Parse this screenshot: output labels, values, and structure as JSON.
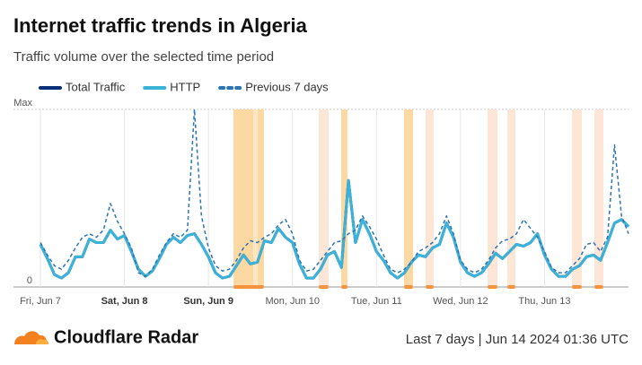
{
  "chart_data": {
    "type": "line",
    "title": "Internet traffic trends in Algeria",
    "subtitle": "Traffic volume over the selected time period",
    "categories": [
      "Fri, Jun 7",
      null,
      null,
      null,
      null,
      null,
      null,
      null,
      null,
      null,
      null,
      null,
      "Sat, Jun 8",
      null,
      null,
      null,
      null,
      null,
      null,
      null,
      null,
      null,
      null,
      null,
      "Sun, Jun 9",
      null,
      null,
      null,
      null,
      null,
      null,
      null,
      null,
      null,
      null,
      null,
      "Mon, Jun 10",
      null,
      null,
      null,
      null,
      null,
      null,
      null,
      null,
      null,
      null,
      null,
      "Tue, Jun 11",
      null,
      null,
      null,
      null,
      null,
      null,
      null,
      null,
      null,
      null,
      null,
      "Wed, Jun 12",
      null,
      null,
      null,
      null,
      null,
      null,
      null,
      null,
      null,
      null,
      null,
      "Thu, Jun 13",
      null,
      null,
      null,
      null,
      null,
      null,
      null,
      null,
      null,
      null,
      null,
      null
    ],
    "series": [
      {
        "name": "Total Traffic",
        "color": "#0a2f7a",
        "dashed": false,
        "values": [
          24,
          16,
          7,
          5,
          8,
          17,
          17,
          27,
          25,
          25,
          32,
          27,
          29,
          20,
          10,
          6,
          9,
          16,
          24,
          28,
          25,
          29,
          30,
          24,
          17,
          8,
          5,
          6,
          12,
          18,
          13,
          14,
          26,
          25,
          33,
          28,
          25,
          13,
          5,
          5,
          10,
          18,
          20,
          11,
          60,
          25,
          38,
          30,
          20,
          15,
          8,
          5,
          8,
          14,
          18,
          17,
          22,
          24,
          36,
          28,
          14,
          8,
          6,
          8,
          13,
          19,
          16,
          20,
          24,
          23,
          25,
          30,
          18,
          10,
          6,
          6,
          10,
          12,
          17,
          18,
          15,
          25,
          36,
          38,
          34
        ]
      },
      {
        "name": "HTTP",
        "color": "#3bb3d8",
        "dashed": false,
        "values": [
          24,
          16,
          7,
          5,
          8,
          17,
          17,
          27,
          25,
          25,
          32,
          27,
          29,
          20,
          10,
          6,
          9,
          16,
          24,
          28,
          25,
          29,
          30,
          24,
          17,
          8,
          5,
          6,
          12,
          18,
          13,
          14,
          26,
          25,
          33,
          28,
          25,
          13,
          5,
          5,
          10,
          18,
          20,
          11,
          60,
          25,
          38,
          30,
          20,
          15,
          8,
          5,
          8,
          14,
          18,
          17,
          22,
          24,
          36,
          28,
          14,
          8,
          6,
          8,
          13,
          19,
          16,
          20,
          24,
          23,
          25,
          30,
          18,
          10,
          6,
          6,
          10,
          12,
          17,
          18,
          15,
          25,
          36,
          38,
          34
        ]
      },
      {
        "name": "Previous 7 days",
        "color": "#2b74b5",
        "dashed": true,
        "values": [
          25,
          18,
          12,
          10,
          15,
          22,
          28,
          30,
          28,
          32,
          47,
          37,
          30,
          22,
          8,
          6,
          10,
          18,
          25,
          30,
          28,
          32,
          100,
          40,
          22,
          12,
          9,
          10,
          15,
          22,
          26,
          25,
          28,
          30,
          35,
          38,
          30,
          15,
          9,
          10,
          15,
          20,
          25,
          26,
          30,
          32,
          40,
          34,
          27,
          18,
          10,
          8,
          10,
          14,
          20,
          22,
          25,
          30,
          40,
          30,
          15,
          10,
          8,
          10,
          15,
          22,
          26,
          27,
          30,
          38,
          33,
          28,
          20,
          11,
          8,
          8,
          12,
          16,
          24,
          25,
          20,
          28,
          80,
          40,
          30
        ]
      }
    ],
    "ylim": [
      0,
      100
    ],
    "yticks": [
      0,
      {
        "value": 100,
        "label": "Max"
      }
    ],
    "grid": true,
    "legend": "top",
    "brand": "Cloudflare Radar",
    "footer": "Last 7 days | Jun 14 2024 01:36 UTC"
  }
}
